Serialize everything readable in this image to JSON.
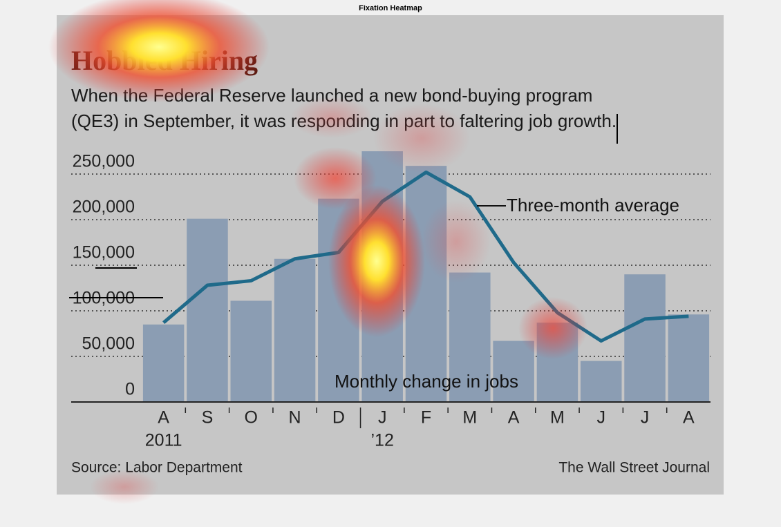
{
  "heatmap_title": "Fixation Heatmap",
  "chart_data": {
    "type": "bar",
    "title": "Hobbled Hiring",
    "subtitle": [
      "When the Federal Reserve launched a new bond-buying program",
      "(QE3) in September, it was responding in part to faltering job growth."
    ],
    "categories": [
      "A",
      "S",
      "O",
      "N",
      "D",
      "J",
      "F",
      "M",
      "A",
      "M",
      "J",
      "J",
      "A"
    ],
    "category_years": [
      "2011",
      null,
      null,
      null,
      null,
      "’12",
      null,
      null,
      null,
      null,
      null,
      null,
      null
    ],
    "series": [
      {
        "name": "Monthly change in jobs",
        "type": "bar",
        "color": "#8b9db3",
        "values": [
          85000,
          201000,
          111000,
          157000,
          223000,
          275000,
          259000,
          142000,
          67000,
          87000,
          45000,
          140000,
          96000
        ]
      },
      {
        "name": "Three-month average",
        "type": "line",
        "color": "#1f6a8a",
        "values": [
          87000,
          128000,
          133000,
          157000,
          164000,
          220000,
          252000,
          225000,
          153000,
          98000,
          67000,
          91000,
          94000
        ]
      }
    ],
    "ylim": [
      0,
      265000
    ],
    "yticks": [
      0,
      {
        "value": 50000,
        "label": "50,000"
      },
      {
        "value": 100000,
        "label": "100,000"
      },
      {
        "value": 150000,
        "label": "150,000"
      },
      {
        "value": 200000,
        "label": "200,000"
      },
      {
        "value": 250000,
        "label": "250,000"
      }
    ],
    "grid": true,
    "source": "Source: Labor Department",
    "publisher": "The Wall Street Journal"
  }
}
